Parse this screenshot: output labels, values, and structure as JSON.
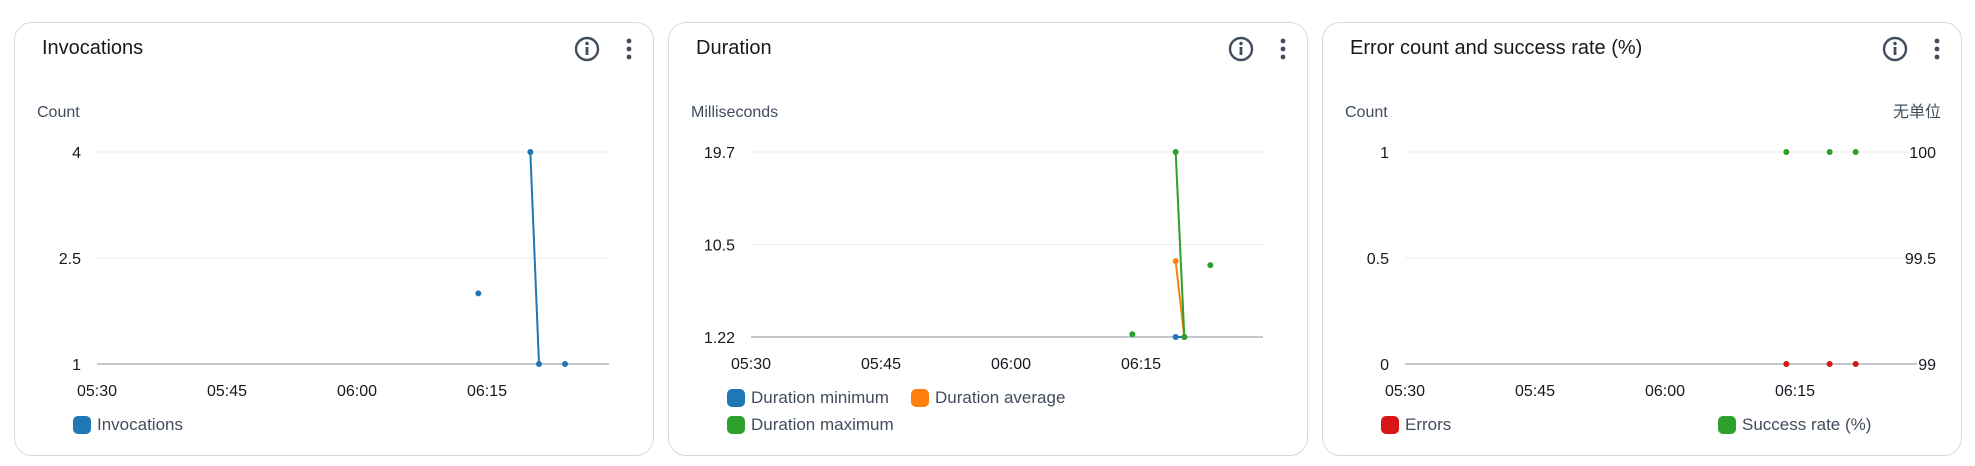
{
  "panels": [
    {
      "title": "Invocations",
      "y_label": "Count",
      "y_ticks": [
        "4",
        "2.5",
        "1"
      ],
      "x_ticks": [
        "05:30",
        "05:45",
        "06:00",
        "06:15"
      ],
      "legend": [
        {
          "name": "Invocations",
          "color": "#1f77b4"
        }
      ],
      "icons": [
        "info-icon",
        "more-vertical-icon"
      ]
    },
    {
      "title": "Duration",
      "y_label": "Milliseconds",
      "y_ticks": [
        "19.7",
        "10.5",
        "1.22"
      ],
      "x_ticks": [
        "05:30",
        "05:45",
        "06:00",
        "06:15"
      ],
      "legend": [
        {
          "name": "Duration minimum",
          "color": "#1f77b4"
        },
        {
          "name": "Duration average",
          "color": "#ff7f0e"
        },
        {
          "name": "Duration maximum",
          "color": "#2ca02c"
        }
      ],
      "icons": [
        "info-icon",
        "more-vertical-icon"
      ]
    },
    {
      "title": "Error count and success rate (%)",
      "y_label": "Count",
      "y2_label": "无单位",
      "y_ticks": [
        "1",
        "0.5",
        "0"
      ],
      "y2_ticks": [
        "100",
        "99.5",
        "99"
      ],
      "x_ticks": [
        "05:30",
        "05:45",
        "06:00",
        "06:15"
      ],
      "legend": [
        {
          "name": "Errors",
          "color": "#d91515"
        },
        {
          "name": "Success rate (%)",
          "color": "#2ca02c"
        }
      ],
      "icons": [
        "info-icon",
        "more-vertical-icon"
      ]
    }
  ],
  "chart_data": [
    {
      "type": "line",
      "title": "Invocations",
      "ylabel": "Count",
      "xlim": [
        "05:30",
        "06:28"
      ],
      "ylim": [
        1,
        4
      ],
      "grid": true,
      "legend_placement": "bottom-left",
      "series": [
        {
          "name": "Invocations",
          "color": "#1f77b4",
          "points": [
            [
              "06:14",
              2
            ],
            [
              "06:20",
              4
            ],
            [
              "06:21",
              1
            ],
            [
              "06:24",
              1
            ]
          ]
        }
      ]
    },
    {
      "type": "line",
      "title": "Duration",
      "ylabel": "Milliseconds",
      "xlim": [
        "05:30",
        "06:28"
      ],
      "ylim": [
        1.22,
        19.7
      ],
      "grid": true,
      "legend_placement": "bottom-left",
      "series": [
        {
          "name": "Duration minimum",
          "color": "#1f77b4",
          "points": [
            [
              "06:19",
              1.22
            ],
            [
              "06:20",
              1.22
            ]
          ]
        },
        {
          "name": "Duration average",
          "color": "#ff7f0e",
          "points": [
            [
              "06:19",
              8.8
            ],
            [
              "06:20",
              1.22
            ]
          ]
        },
        {
          "name": "Duration maximum",
          "color": "#2ca02c",
          "points": [
            [
              "06:14",
              1.5
            ],
            [
              "06:19",
              19.7
            ],
            [
              "06:20",
              1.22
            ],
            [
              "06:23",
              8.4
            ]
          ]
        }
      ]
    },
    {
      "type": "line",
      "title": "Error count and success rate (%)",
      "ylabel": "Count",
      "y2label": "无单位",
      "xlim": [
        "05:30",
        "06:28"
      ],
      "ylim": [
        0,
        1
      ],
      "y2lim": [
        99,
        100
      ],
      "grid": true,
      "legend_placement": "bottom",
      "series": [
        {
          "name": "Errors",
          "color": "#d91515",
          "axis": "left",
          "points": [
            [
              "06:14",
              0
            ],
            [
              "06:19",
              0
            ],
            [
              "06:22",
              0
            ]
          ]
        },
        {
          "name": "Success rate (%)",
          "color": "#2ca02c",
          "axis": "right",
          "points": [
            [
              "06:14",
              100
            ],
            [
              "06:19",
              100
            ],
            [
              "06:22",
              100
            ]
          ]
        }
      ]
    }
  ]
}
